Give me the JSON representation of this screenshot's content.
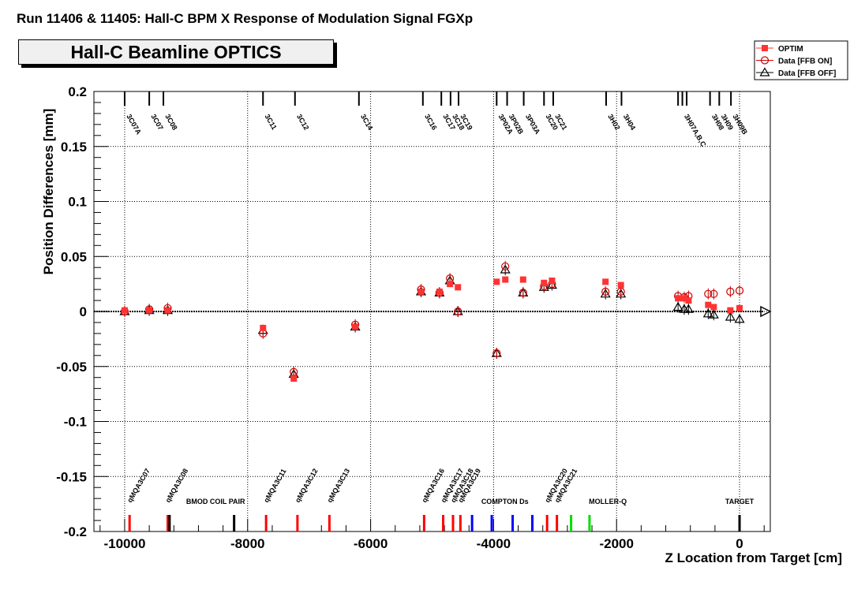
{
  "header": {
    "title": "Run 11406 & 11405: Hall-C BPM X Response of Modulation Signal FGXp",
    "subtitle": "Hall-C Beamline OPTICS"
  },
  "chart_data": {
    "type": "scatter",
    "title": "Run 11406 & 11405: Hall-C BPM X Response of Modulation Signal FGXp",
    "xlabel": "Z Location from Target [cm]",
    "ylabel": "Position Differences [mm]",
    "xlim": [
      -10500,
      500
    ],
    "ylim": [
      -0.2,
      0.2
    ],
    "x_ticks": [
      -10000,
      -8000,
      -6000,
      -4000,
      -2000,
      0
    ],
    "x_tick_labels": [
      "-10000",
      "-8000",
      "-6000",
      "-4000",
      "-2000",
      "0"
    ],
    "y_ticks": [
      -0.2,
      -0.15,
      -0.1,
      -0.05,
      0,
      0.05,
      0.1,
      0.15,
      0.2
    ],
    "y_tick_labels": [
      "-0.2",
      "-0.15",
      "-0.1",
      "-0.05",
      "0",
      "0.05",
      "0.1",
      "0.15",
      "0.2"
    ],
    "grid": true,
    "legend_position": "top-right",
    "series": [
      {
        "name": "OPTIM",
        "marker": "square",
        "color": "#ff3333",
        "x": [
          -10000,
          -9600,
          -9300,
          -7750,
          -7250,
          -6250,
          -5180,
          -4880,
          -4710,
          -4580,
          -3950,
          -3810,
          -3520,
          -3180,
          -3050,
          -2180,
          -1930,
          -1000,
          -900,
          -830,
          -510,
          -420,
          -150,
          0
        ],
        "y": [
          0.001,
          0.001,
          0.001,
          -0.015,
          -0.061,
          -0.014,
          0.018,
          0.018,
          0.025,
          0.022,
          0.027,
          0.029,
          0.029,
          0.026,
          0.028,
          0.027,
          0.024,
          0.012,
          0.012,
          0.01,
          0.006,
          0.004,
          0.001,
          0.003
        ]
      },
      {
        "name": "Data [FFB ON]",
        "marker": "open-circle",
        "color": "#cc0000",
        "x": [
          -10000,
          -9600,
          -9300,
          -7750,
          -7250,
          -6250,
          -5180,
          -4880,
          -4710,
          -4580,
          -3950,
          -3810,
          -3520,
          -3180,
          -3050,
          -2180,
          -1930,
          -1000,
          -900,
          -830,
          -510,
          -420,
          -150,
          0
        ],
        "y": [
          0,
          0.002,
          0.003,
          -0.02,
          -0.055,
          -0.012,
          0.02,
          0.017,
          0.03,
          0.0,
          -0.038,
          0.041,
          0.017,
          0.023,
          0.025,
          0.018,
          0.018,
          0.014,
          0.013,
          0.014,
          0.016,
          0.016,
          0.018,
          0.019
        ]
      },
      {
        "name": "Data [FFB OFF]",
        "marker": "open-triangle",
        "color": "#000000",
        "x": [
          -10000,
          -9600,
          -9300,
          -7750,
          -7250,
          -6250,
          -5180,
          -4880,
          -4710,
          -4580,
          -3950,
          -3810,
          -3520,
          -3180,
          -3050,
          -2180,
          -1930,
          -1000,
          -900,
          -830,
          -510,
          -420,
          -150,
          0
        ],
        "y": [
          0,
          0.001,
          0.001,
          -0.017,
          -0.057,
          -0.014,
          0.018,
          0.017,
          0.028,
          0.0,
          -0.038,
          0.038,
          0.017,
          0.022,
          0.024,
          0.016,
          0.016,
          0.004,
          0.002,
          0.002,
          -0.002,
          -0.003,
          -0.005,
          -0.007
        ]
      }
    ],
    "bpm_labels": [
      {
        "z": -10000,
        "label": "3C07A"
      },
      {
        "z": -9600,
        "label": "3C07"
      },
      {
        "z": -9370,
        "label": "3C08"
      },
      {
        "z": -7750,
        "label": "3C11"
      },
      {
        "z": -7230,
        "label": "3C12"
      },
      {
        "z": -6190,
        "label": "3C14"
      },
      {
        "z": -5150,
        "label": "3C16"
      },
      {
        "z": -4850,
        "label": "3C17"
      },
      {
        "z": -4700,
        "label": "3C18"
      },
      {
        "z": -4570,
        "label": "3C19"
      },
      {
        "z": -3950,
        "label": "3P02A"
      },
      {
        "z": -3780,
        "label": "3P02B"
      },
      {
        "z": -3510,
        "label": "3P03A"
      },
      {
        "z": -3180,
        "label": "3C20"
      },
      {
        "z": -3030,
        "label": "3C21"
      },
      {
        "z": -2170,
        "label": "3H02"
      },
      {
        "z": -1920,
        "label": "3H04"
      },
      {
        "z": -930,
        "label": "3H07A,B,C"
      },
      {
        "z": -480,
        "label": "3H08"
      },
      {
        "z": -330,
        "label": "3H09"
      },
      {
        "z": -140,
        "label": "3H09B"
      }
    ],
    "bpm_extra_ticks": [
      -1000,
      -860
    ],
    "elements": [
      {
        "z": -9920,
        "color": "#ff0000"
      },
      {
        "z": -9300,
        "color": "#ff0000"
      },
      {
        "z": -9270,
        "color": "#000000"
      },
      {
        "z": -8220,
        "color": "#000000"
      },
      {
        "z": -7700,
        "color": "#ff0000"
      },
      {
        "z": -7190,
        "color": "#ff0000"
      },
      {
        "z": -6670,
        "color": "#ff0000"
      },
      {
        "z": -5130,
        "color": "#ff0000"
      },
      {
        "z": -4820,
        "color": "#ff0000"
      },
      {
        "z": -4660,
        "color": "#ff0000"
      },
      {
        "z": -4540,
        "color": "#ff0000"
      },
      {
        "z": -4350,
        "color": "#0000ff"
      },
      {
        "z": -4030,
        "color": "#0000ff"
      },
      {
        "z": -3690,
        "color": "#0000ff"
      },
      {
        "z": -3370,
        "color": "#0000ff"
      },
      {
        "z": -3130,
        "color": "#ff0000"
      },
      {
        "z": -2970,
        "color": "#ff0000"
      },
      {
        "z": -2740,
        "color": "#00dd00"
      },
      {
        "z": -2440,
        "color": "#00dd00"
      },
      {
        "z": 0,
        "color": "#000000"
      }
    ],
    "element_labels": [
      {
        "z": -9920,
        "label": "qMQA3C07",
        "rotated": true
      },
      {
        "z": -9300,
        "label": "qMQA3C08",
        "rotated": true
      },
      {
        "z": -9000,
        "label": "BMOD COIL PAIR",
        "rotated": false
      },
      {
        "z": -7700,
        "label": "qMQA3C11",
        "rotated": true
      },
      {
        "z": -7190,
        "label": "qMQA3C12",
        "rotated": true
      },
      {
        "z": -6670,
        "label": "qMQA3C13",
        "rotated": true
      },
      {
        "z": -5130,
        "label": "qMQA3C16",
        "rotated": true
      },
      {
        "z": -4820,
        "label": "qMQA3C17",
        "rotated": true
      },
      {
        "z": -4660,
        "label": "qMQA3C18",
        "rotated": true
      },
      {
        "z": -4540,
        "label": "qMQA3C19",
        "rotated": true
      },
      {
        "z": -4200,
        "label": "COMPTON Ds",
        "rotated": false
      },
      {
        "z": -3130,
        "label": "qMQA3C20",
        "rotated": true
      },
      {
        "z": -2970,
        "label": "qMQA3C21",
        "rotated": true
      },
      {
        "z": -2450,
        "label": "MOLLER-Q",
        "rotated": false
      },
      {
        "z": 0,
        "label": "TARGET",
        "rotated": false
      }
    ]
  }
}
